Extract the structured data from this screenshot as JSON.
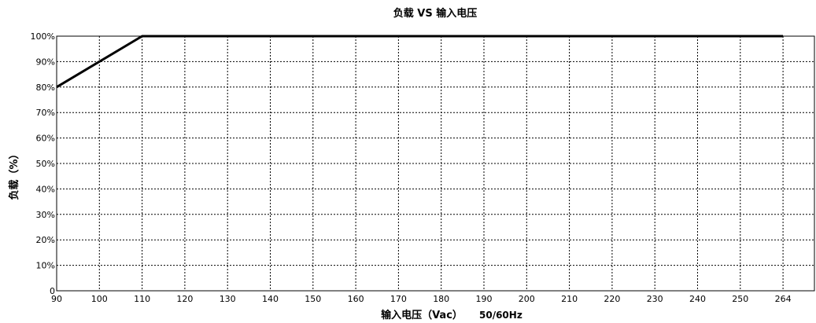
{
  "chart_data": {
    "type": "line",
    "title": "负载 VS 输入电压",
    "xlabel": "输入电压（Vac）",
    "xlabel_suffix": "50/60Hz",
    "ylabel": "负载（%）",
    "x_ticks": [
      90,
      100,
      110,
      120,
      130,
      140,
      150,
      160,
      170,
      180,
      190,
      200,
      210,
      220,
      230,
      240,
      250,
      264
    ],
    "y_ticks": [
      "0",
      "10%",
      "20%",
      "30%",
      "40%",
      "50%",
      "60%",
      "70%",
      "80%",
      "90%",
      "100%"
    ],
    "ylim": [
      0,
      100
    ],
    "xlim": [
      90,
      264
    ],
    "grid": true,
    "series": [
      {
        "x": [
          90,
          110,
          264
        ],
        "y": [
          80,
          100,
          100
        ],
        "color": "#000000"
      }
    ]
  }
}
